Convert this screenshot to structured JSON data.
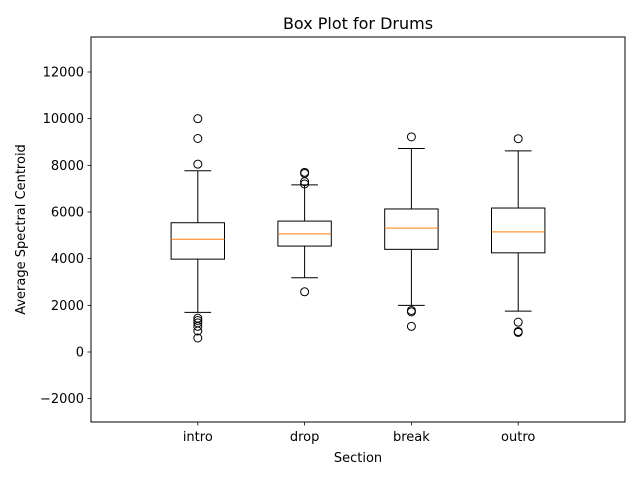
{
  "chart_data": {
    "type": "box",
    "title": "Box Plot for Drums",
    "xlabel": "Section",
    "ylabel": "Average Spectral Centroid",
    "ylim": [
      -3000,
      13500
    ],
    "yticks": [
      -2000,
      0,
      2000,
      4000,
      6000,
      8000,
      10000,
      12000
    ],
    "ytick_labels": [
      "−2000",
      "0",
      "2000",
      "4000",
      "6000",
      "8000",
      "10000",
      "12000"
    ],
    "categories": [
      "intro",
      "drop",
      "break",
      "outro"
    ],
    "grid": false,
    "boxes": [
      {
        "category": "intro",
        "whisker_low": 1700,
        "q1": 3980,
        "median": 4830,
        "q3": 5540,
        "whisker_high": 7770,
        "outliers": [
          10000,
          9150,
          8050,
          1450,
          1350,
          1250,
          1100,
          900,
          600
        ]
      },
      {
        "category": "drop",
        "whisker_low": 3180,
        "q1": 4540,
        "median": 5060,
        "q3": 5610,
        "whisker_high": 7160,
        "outliers": [
          7700,
          7650,
          7300,
          7200,
          2580
        ]
      },
      {
        "category": "break",
        "whisker_low": 2000,
        "q1": 4400,
        "median": 5310,
        "q3": 6130,
        "whisker_high": 8720,
        "outliers": [
          9220,
          1780,
          1720,
          1100
        ]
      },
      {
        "category": "outro",
        "whisker_low": 1750,
        "q1": 4250,
        "median": 5150,
        "q3": 6170,
        "whisker_high": 8620,
        "outliers": [
          9140,
          1280,
          880,
          840
        ]
      }
    ],
    "colors": {
      "box": "#000000",
      "median": "#ff7f0e",
      "outlier": "#000000"
    }
  }
}
